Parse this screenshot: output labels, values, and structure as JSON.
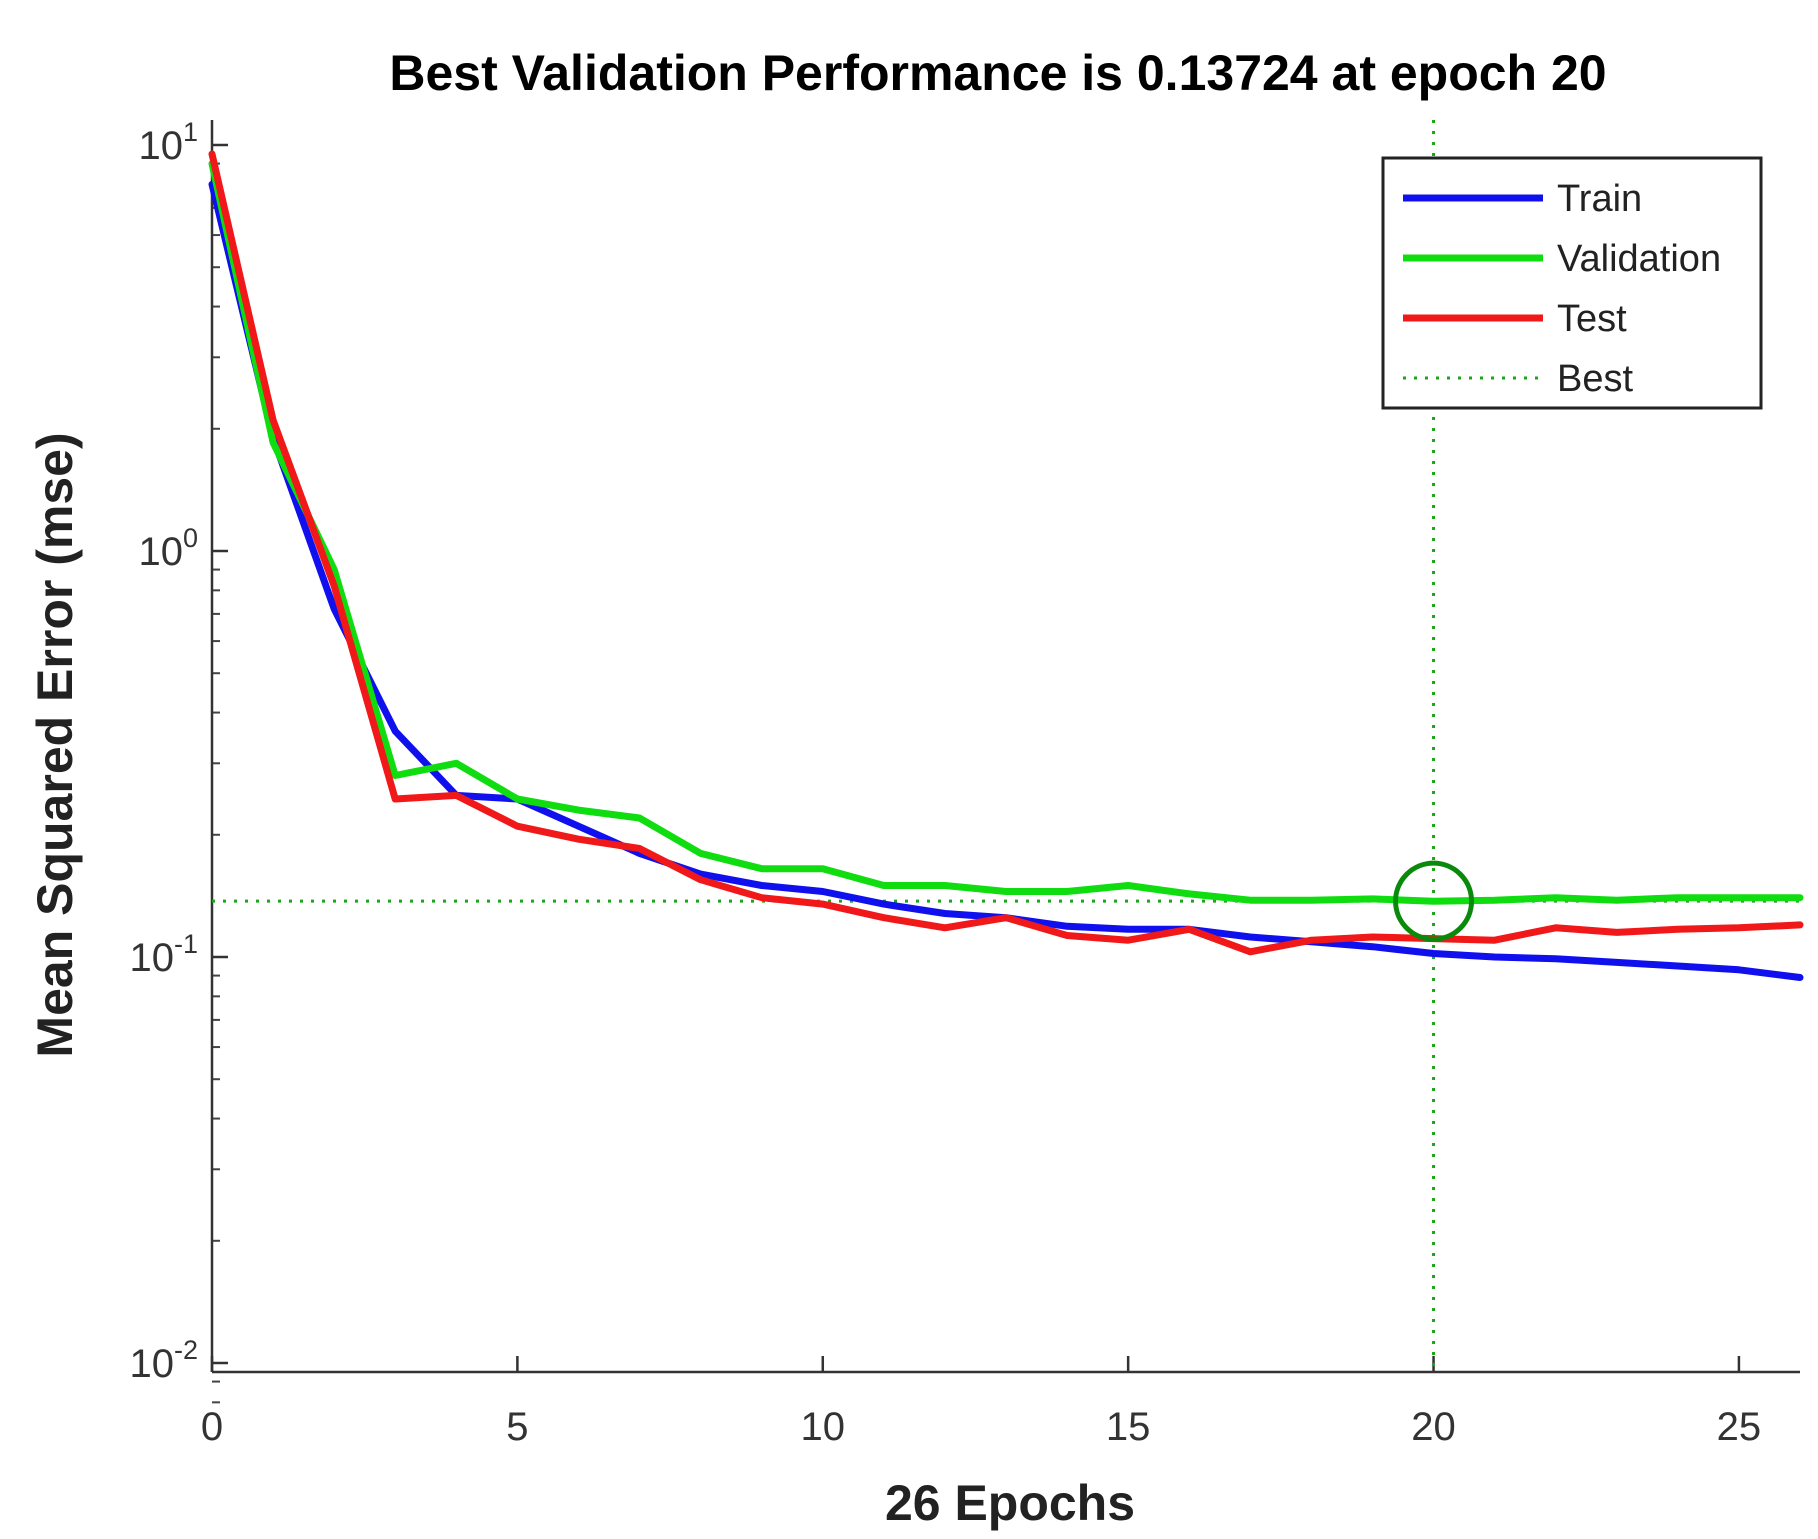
{
  "chart_data": {
    "type": "line",
    "title": "Best Validation Performance is 0.13724 at epoch 20",
    "xlabel": "26 Epochs",
    "ylabel": "Mean Squared Error  (mse)",
    "xlim": [
      0,
      26
    ],
    "ylim": [
      0.008,
      12
    ],
    "yscale": "log",
    "x_ticks": [
      0,
      5,
      10,
      15,
      20,
      25
    ],
    "y_ticks": [
      {
        "value": 10,
        "base": "10",
        "exp": "1"
      },
      {
        "value": 1,
        "base": "10",
        "exp": "0"
      },
      {
        "value": 0.1,
        "base": "10",
        "exp": "-1"
      },
      {
        "value": 0.01,
        "base": "10",
        "exp": "-2"
      }
    ],
    "x": [
      0,
      1,
      2,
      3,
      4,
      5,
      6,
      7,
      8,
      9,
      10,
      11,
      12,
      13,
      14,
      15,
      16,
      17,
      18,
      19,
      20,
      21,
      22,
      23,
      24,
      25,
      26
    ],
    "series": [
      {
        "name": "Train",
        "color": "#1010ee",
        "values": [
          8.0,
          1.9,
          0.72,
          0.36,
          0.25,
          0.245,
          0.21,
          0.18,
          0.16,
          0.15,
          0.145,
          0.135,
          0.128,
          0.125,
          0.119,
          0.117,
          0.117,
          0.112,
          0.109,
          0.106,
          0.102,
          0.1,
          0.099,
          0.097,
          0.095,
          0.093,
          0.089
        ]
      },
      {
        "name": "Validation",
        "color": "#10dd10",
        "values": [
          9.0,
          1.85,
          0.9,
          0.28,
          0.3,
          0.245,
          0.23,
          0.22,
          0.18,
          0.165,
          0.165,
          0.15,
          0.15,
          0.145,
          0.145,
          0.15,
          0.143,
          0.138,
          0.138,
          0.139,
          0.13724,
          0.138,
          0.14,
          0.138,
          0.14,
          0.14,
          0.14
        ]
      },
      {
        "name": "Test",
        "color": "#f01818",
        "values": [
          9.5,
          2.1,
          0.82,
          0.245,
          0.25,
          0.21,
          0.195,
          0.185,
          0.155,
          0.14,
          0.135,
          0.125,
          0.118,
          0.125,
          0.113,
          0.11,
          0.117,
          0.103,
          0.11,
          0.112,
          0.111,
          0.11,
          0.118,
          0.115,
          0.117,
          0.118,
          0.12
        ]
      }
    ],
    "best": {
      "name": "Best",
      "epoch": 20,
      "value": 0.13724,
      "color": "#1aa51a",
      "marker_color": "#0a8a0a"
    },
    "legend": {
      "position": "top-right",
      "entries": [
        "Train",
        "Validation",
        "Test",
        "Best"
      ]
    }
  }
}
